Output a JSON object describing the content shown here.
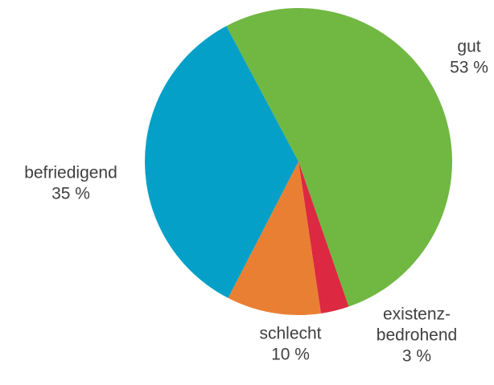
{
  "chart_data": {
    "type": "pie",
    "title": "",
    "start_angle_deg": -28,
    "direction": "clockwise",
    "slices": [
      {
        "category": "gut",
        "label_lines": [
          "gut"
        ],
        "value": 53,
        "value_label": "53 %",
        "color": "#70B842"
      },
      {
        "category": "existenzbedrohend",
        "label_lines": [
          "existenz-",
          "bedrohend"
        ],
        "value": 3,
        "value_label": "3 %",
        "color": "#DC2840"
      },
      {
        "category": "schlecht",
        "label_lines": [
          "schlecht"
        ],
        "value": 10,
        "value_label": "10 %",
        "color": "#E97F33"
      },
      {
        "category": "befriedigend",
        "label_lines": [
          "befriedigend"
        ],
        "value": 35,
        "value_label": "35 %",
        "color": "#04A0C8"
      }
    ],
    "legend": "none",
    "label_color": "#404040"
  }
}
